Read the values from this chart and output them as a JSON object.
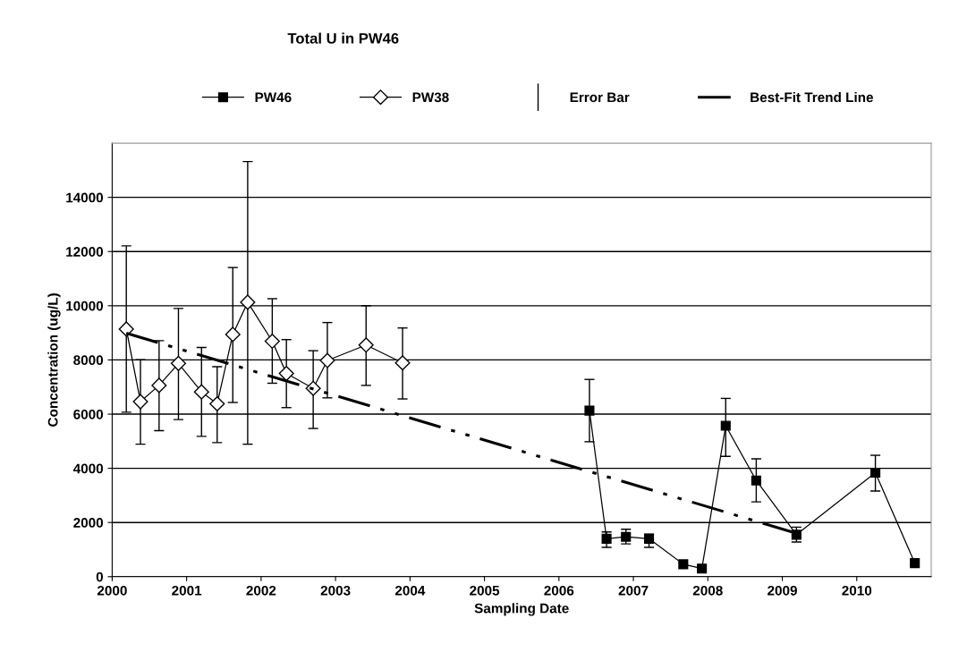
{
  "chart_data": {
    "type": "line",
    "title": "Total U in PW46",
    "xlabel": "Sampling Date",
    "ylabel": "Concentration (ug/L)",
    "annotations": [
      "Error Bar"
    ],
    "series": [
      {
        "name": "PW46",
        "color": "#000000",
        "marker": "square",
        "x": [
          2006.41,
          2006.64,
          2006.9,
          2007.21,
          2007.67,
          2007.92,
          2008.24,
          2008.65,
          2009.19,
          2010.25,
          2010.78
        ],
        "values": [
          6130,
          1400,
          1470,
          1400,
          460,
          300,
          5570,
          3550,
          1550,
          3840,
          500
        ],
        "errors": [
          [
            4980,
            7280
          ],
          [
            1080,
            1650
          ],
          [
            1210,
            1750
          ],
          [
            1080,
            1570
          ],
          null,
          null,
          [
            4440,
            6580
          ],
          [
            2760,
            4350
          ],
          [
            1280,
            1830
          ],
          [
            3160,
            4480
          ],
          null
        ]
      },
      {
        "name": "PW38",
        "color": "#000000",
        "marker": "diamond",
        "x": [
          2000.19,
          2000.38,
          2000.63,
          2000.89,
          2001.2,
          2001.41,
          2001.62,
          2001.82,
          2002.15,
          2002.34,
          2002.7,
          2002.89,
          2003.41,
          2003.9
        ],
        "values": [
          9140,
          6460,
          7060,
          7870,
          6820,
          6380,
          8940,
          10130,
          8690,
          7500,
          6950,
          7980,
          8550,
          7890
        ],
        "errors": [
          [
            6070,
            12210
          ],
          [
            4890,
            8010
          ],
          [
            5390,
            8710
          ],
          [
            5800,
            9900
          ],
          [
            5180,
            8460
          ],
          [
            4950,
            7750
          ],
          [
            6430,
            11410
          ],
          [
            4890,
            15320
          ],
          [
            7140,
            10260
          ],
          [
            6240,
            8750
          ],
          [
            5470,
            8340
          ],
          [
            6600,
            9380
          ],
          [
            7060,
            10000
          ],
          [
            6560,
            9180
          ]
        ]
      },
      {
        "name": "Best-Fit Trend Line",
        "color": "#000000",
        "marker": "none",
        "line_style": "dashdot",
        "x": [
          2000.19,
          2009.19
        ],
        "values": [
          8990,
          1600
        ]
      }
    ],
    "xlim": [
      2000,
      2011
    ],
    "xticks": [
      2000,
      2001,
      2002,
      2003,
      2004,
      2005,
      2006,
      2007,
      2008,
      2009,
      2010
    ],
    "ylim": [
      0,
      16000
    ],
    "yticks": [
      0,
      2000,
      4000,
      6000,
      8000,
      10000,
      12000,
      14000
    ],
    "grid": "y",
    "legend": "top"
  }
}
